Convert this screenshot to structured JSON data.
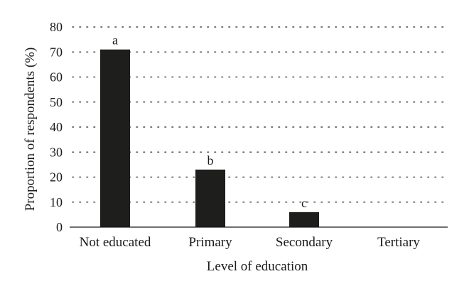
{
  "chart_data": {
    "type": "bar",
    "title": "",
    "xlabel": "Level of education",
    "ylabel": "Proportion of respondents (%)",
    "categories": [
      "Not educated",
      "Primary",
      "Secondary",
      "Tertiary"
    ],
    "values": [
      71,
      23,
      6,
      0
    ],
    "data_labels": [
      "a",
      "b",
      "c",
      ""
    ],
    "ylim": [
      0,
      80
    ],
    "yticks": [
      0,
      10,
      20,
      30,
      40,
      50,
      60,
      70,
      80
    ],
    "grid": true,
    "bar_color": "#1e1f1c"
  }
}
